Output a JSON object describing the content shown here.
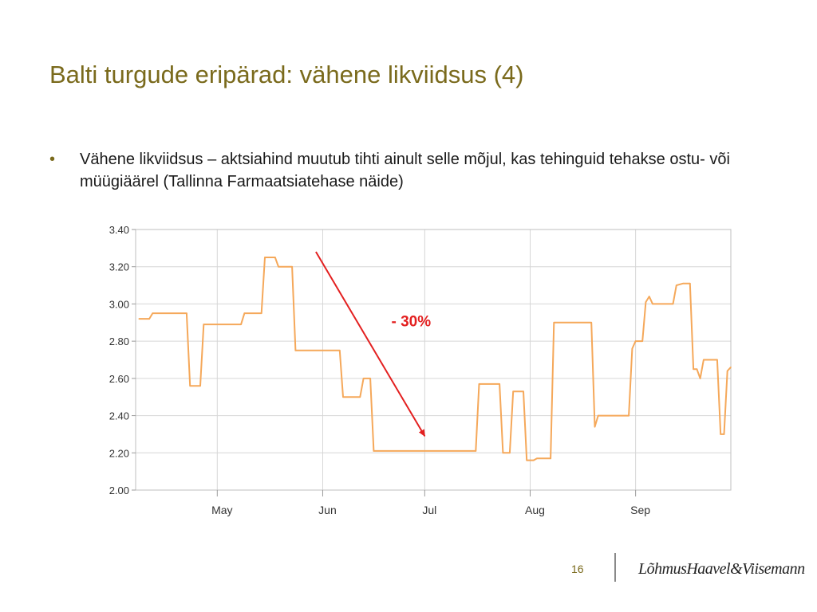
{
  "slide": {
    "title": "Balti turgude eripärad: vähene likviidsus (4)",
    "bullet_marker": "•",
    "bullet_text": "Vähene likviidsus – aktsiahind muutub tihti ainult selle mõjul, kas tehinguid tehakse ostu- või müügiäärel (Tallinna Farmaatsiatehase näide)"
  },
  "footer": {
    "page_number": "16",
    "logo_text": "LõhmusHaavel&Viisemann"
  },
  "colors": {
    "title": "#7a6a1c",
    "line": "#f5a85a",
    "arrow": "#e32020",
    "grid": "#d6d6d6"
  },
  "chart_data": {
    "type": "line",
    "title": "",
    "xlabel": "",
    "ylabel": "",
    "ylim": [
      2.0,
      3.4
    ],
    "yticks": [
      "3.40",
      "3.20",
      "3.00",
      "2.80",
      "2.60",
      "2.40",
      "2.20",
      "2.00"
    ],
    "xticks": [
      {
        "label": "May",
        "x": "2007-05-01"
      },
      {
        "label": "Jun",
        "x": "2007-06-01"
      },
      {
        "label": "Jul",
        "x": "2007-07-01"
      },
      {
        "label": "Aug",
        "x": "2007-08-01"
      },
      {
        "label": "Sep",
        "x": "2007-09-01"
      }
    ],
    "grid": true,
    "series": [
      {
        "points": [
          [
            "2007-04-08",
            2.92
          ],
          [
            "2007-04-11",
            2.92
          ],
          [
            "2007-04-12",
            2.95
          ],
          [
            "2007-04-22",
            2.95
          ],
          [
            "2007-04-23",
            2.56
          ],
          [
            "2007-04-26",
            2.56
          ],
          [
            "2007-04-27",
            2.89
          ],
          [
            "2007-05-08",
            2.89
          ],
          [
            "2007-05-09",
            2.95
          ],
          [
            "2007-05-14",
            2.95
          ],
          [
            "2007-05-15",
            3.25
          ],
          [
            "2007-05-18",
            3.25
          ],
          [
            "2007-05-19",
            3.2
          ],
          [
            "2007-05-23",
            3.2
          ],
          [
            "2007-05-24",
            2.75
          ],
          [
            "2007-06-06",
            2.75
          ],
          [
            "2007-06-07",
            2.5
          ],
          [
            "2007-06-12",
            2.5
          ],
          [
            "2007-06-13",
            2.6
          ],
          [
            "2007-06-15",
            2.6
          ],
          [
            "2007-06-16",
            2.21
          ],
          [
            "2007-07-16",
            2.21
          ],
          [
            "2007-07-17",
            2.57
          ],
          [
            "2007-07-23",
            2.57
          ],
          [
            "2007-07-24",
            2.2
          ],
          [
            "2007-07-26",
            2.2
          ],
          [
            "2007-07-27",
            2.53
          ],
          [
            "2007-07-30",
            2.53
          ],
          [
            "2007-07-31",
            2.16
          ],
          [
            "2007-08-02",
            2.16
          ],
          [
            "2007-08-03",
            2.17
          ],
          [
            "2007-08-07",
            2.17
          ],
          [
            "2007-08-08",
            2.9
          ],
          [
            "2007-08-19",
            2.9
          ],
          [
            "2007-08-20",
            2.34
          ],
          [
            "2007-08-21",
            2.4
          ],
          [
            "2007-08-30",
            2.4
          ],
          [
            "2007-08-31",
            2.76
          ],
          [
            "2007-09-01",
            2.8
          ],
          [
            "2007-09-03",
            2.8
          ],
          [
            "2007-09-04",
            3.01
          ],
          [
            "2007-09-05",
            3.04
          ],
          [
            "2007-09-06",
            3.0
          ],
          [
            "2007-09-12",
            3.0
          ],
          [
            "2007-09-13",
            3.1
          ],
          [
            "2007-09-15",
            3.11
          ],
          [
            "2007-09-17",
            3.11
          ],
          [
            "2007-09-18",
            2.65
          ],
          [
            "2007-09-19",
            2.65
          ],
          [
            "2007-09-20",
            2.6
          ],
          [
            "2007-09-21",
            2.7
          ],
          [
            "2007-09-25",
            2.7
          ],
          [
            "2007-09-26",
            2.3
          ],
          [
            "2007-09-27",
            2.3
          ],
          [
            "2007-09-28",
            2.64
          ],
          [
            "2007-09-29",
            2.66
          ]
        ]
      }
    ],
    "annotations": [
      {
        "type": "arrow",
        "from": {
          "x": "2007-05-30",
          "y": 3.28
        },
        "to": {
          "x": "2007-07-01",
          "y": 2.29
        },
        "label": "- 30%",
        "label_at": {
          "x": "2007-06-27",
          "y": 2.88
        }
      }
    ]
  }
}
